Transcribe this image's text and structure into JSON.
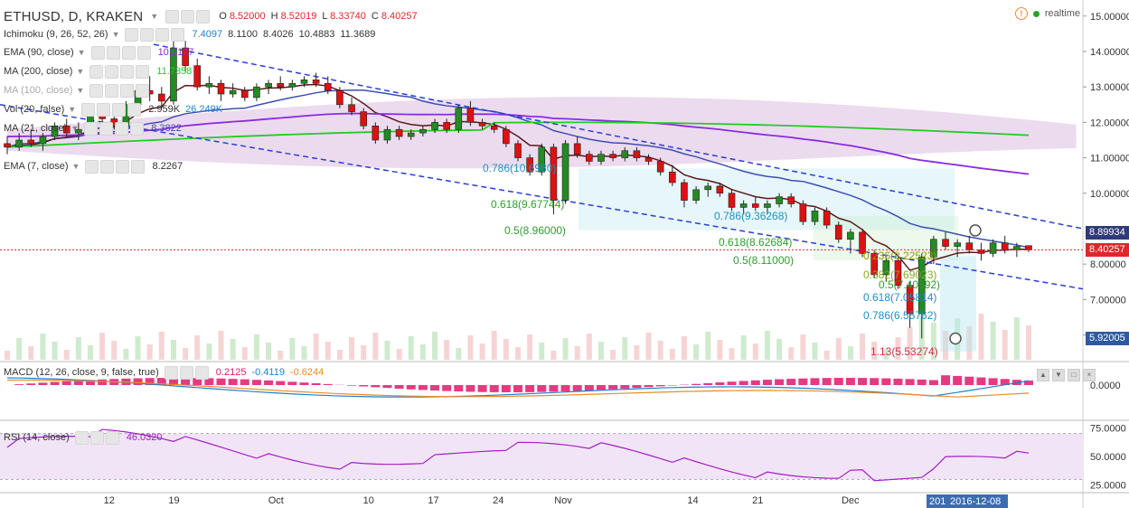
{
  "header": {
    "symbol": "ETHUSD, D, KRAKEN",
    "ohlc": [
      {
        "k": "O",
        "v": "8.52000"
      },
      {
        "k": "H",
        "v": "8.52019"
      },
      {
        "k": "L",
        "v": "8.33740"
      },
      {
        "k": "C",
        "v": "8.40257"
      }
    ]
  },
  "status": {
    "label": "realtime",
    "warn_icon": "warning-icon",
    "status_color": "#2ca02c"
  },
  "indicators": [
    {
      "label": "Ichimoku (9, 26, 52, 26)",
      "values": [
        {
          "text": "7.4097",
          "color": "#1e7fd0"
        },
        {
          "text": "8.1100",
          "color": "#333333"
        },
        {
          "text": "8.4026",
          "color": "#333333"
        },
        {
          "text": "10.4883",
          "color": "#333333"
        },
        {
          "text": "11.3689",
          "color": "#333333"
        }
      ]
    },
    {
      "label": "EMA (90, close)",
      "values": [
        {
          "text": "10.2177",
          "color": "#8a2be2"
        }
      ]
    },
    {
      "label": "MA (200, close)",
      "values": [
        {
          "text": "11.7358",
          "color": "#22cc22"
        }
      ]
    },
    {
      "label": "MA (100, close)",
      "values": [],
      "hidden": true
    },
    {
      "label": "Vol (20, false)",
      "values": [
        {
          "text": "2.959K",
          "color": "#333333"
        },
        {
          "text": "26.249K",
          "color": "#1e7fd0"
        }
      ]
    },
    {
      "label": "MA (21, close)",
      "values": [
        {
          "text": "8.3822",
          "color": "#3e4fb0"
        }
      ]
    },
    {
      "label": "EMA (7, close)",
      "values": [
        {
          "text": "8.2267",
          "color": "#333333"
        }
      ]
    }
  ],
  "fib_labels": [
    {
      "text": "0.786(10.6980)",
      "color": "#1e90c0"
    },
    {
      "text": "0.618(9.67744)",
      "color": "#2ca02c"
    },
    {
      "text": "0.5(8.96000)",
      "color": "#2e9b2e"
    },
    {
      "text": "0.786(9.36268)",
      "color": "#1e90c0"
    },
    {
      "text": "0.618(8.62684)",
      "color": "#2ca02c"
    },
    {
      "text": "0.5(8.11000)",
      "color": "#2e9b2e"
    },
    {
      "text": "0.236(8.22523)",
      "color": "#999900"
    },
    {
      "text": "0.382(7.69023)",
      "color": "#88aa22"
    },
    {
      "text": "0.5(7.40592)",
      "color": "#2e9b2e"
    },
    {
      "text": "0.618(7.05814)",
      "color": "#1e90c0"
    },
    {
      "text": "0.786(6.55762)",
      "color": "#1e90c0"
    },
    {
      "text": "1.13(5.53274)",
      "color": "#d0304a"
    }
  ],
  "price_axis": {
    "ticks": [
      "15.00000",
      "14.00000",
      "13.00000",
      "12.00000",
      "11.00000",
      "10.00000",
      "8.00000",
      "7.00000",
      "6.00000"
    ],
    "tags": [
      {
        "text": "8.89934",
        "value": 8.89934,
        "color": "#2f3a78"
      },
      {
        "text": "8.40257",
        "value": 8.40257,
        "color": "#e0262a"
      },
      {
        "text": "5.92005",
        "value": 5.92005,
        "color": "#2f5aa0"
      }
    ]
  },
  "macd_panel": {
    "label": "MACD (12, 26, close, 9, false, true)",
    "values": [
      {
        "text": "0.2125",
        "color": "#e0186b"
      },
      {
        "text": "-0.4119",
        "color": "#1e7fd0"
      },
      {
        "text": "-0.6244",
        "color": "#f08a24"
      }
    ],
    "axis_ticks": [
      "0.0000"
    ]
  },
  "rsi_panel": {
    "label": "RSI (14, close)",
    "values": [
      {
        "text": "46.0320",
        "color": "#a020c0"
      }
    ],
    "axis_ticks": [
      "75.0000",
      "50.0000",
      "25.0000"
    ]
  },
  "time_axis": {
    "labels": [
      "12",
      "19",
      "Oct",
      "10",
      "17",
      "24",
      "Nov",
      "14",
      "21",
      "Dec",
      "12"
    ],
    "cursor_labels": [
      "201",
      "2016-12-08"
    ]
  },
  "chart_data": {
    "type": "candlestick",
    "symbol": "ETHUSD",
    "interval": "D",
    "exchange": "KRAKEN",
    "ylim": [
      5.3,
      15.3
    ],
    "last_close": 8.40257,
    "candles": [
      [
        11.4,
        11.6,
        11.1,
        11.3
      ],
      [
        11.3,
        11.7,
        11.2,
        11.5
      ],
      [
        11.5,
        11.8,
        11.3,
        11.4
      ],
      [
        11.4,
        11.7,
        11.2,
        11.6
      ],
      [
        11.6,
        12.0,
        11.5,
        11.9
      ],
      [
        11.9,
        12.1,
        11.6,
        11.7
      ],
      [
        11.7,
        12.0,
        11.5,
        11.8
      ],
      [
        11.8,
        12.3,
        11.7,
        12.2
      ],
      [
        12.2,
        12.5,
        12.0,
        12.1
      ],
      [
        12.1,
        12.3,
        11.8,
        11.9
      ],
      [
        11.9,
        12.6,
        11.8,
        12.5
      ],
      [
        12.5,
        13.0,
        12.3,
        12.9
      ],
      [
        12.9,
        13.3,
        12.6,
        12.8
      ],
      [
        12.8,
        13.0,
        12.4,
        12.6
      ],
      [
        12.6,
        14.3,
        12.5,
        14.1
      ],
      [
        14.1,
        14.3,
        13.4,
        13.6
      ],
      [
        13.6,
        13.8,
        12.9,
        13.0
      ],
      [
        13.0,
        13.3,
        12.8,
        13.1
      ],
      [
        13.1,
        13.2,
        12.6,
        12.8
      ],
      [
        12.8,
        13.1,
        12.7,
        12.9
      ],
      [
        12.9,
        13.0,
        12.6,
        12.7
      ],
      [
        12.7,
        13.1,
        12.6,
        13.0
      ],
      [
        13.0,
        13.2,
        12.8,
        13.1
      ],
      [
        13.1,
        13.3,
        12.9,
        13.0
      ],
      [
        13.0,
        13.2,
        12.9,
        13.1
      ],
      [
        13.1,
        13.3,
        13.0,
        13.2
      ],
      [
        13.2,
        13.4,
        13.0,
        13.1
      ],
      [
        13.1,
        13.3,
        12.8,
        12.9
      ],
      [
        12.9,
        13.0,
        12.4,
        12.5
      ],
      [
        12.5,
        12.7,
        12.2,
        12.3
      ],
      [
        12.3,
        12.4,
        11.8,
        11.9
      ],
      [
        11.9,
        12.0,
        11.4,
        11.5
      ],
      [
        11.5,
        11.9,
        11.4,
        11.8
      ],
      [
        11.8,
        11.9,
        11.5,
        11.6
      ],
      [
        11.6,
        11.8,
        11.5,
        11.7
      ],
      [
        11.7,
        11.9,
        11.6,
        11.8
      ],
      [
        11.8,
        12.1,
        11.7,
        12.0
      ],
      [
        12.0,
        12.1,
        11.7,
        11.8
      ],
      [
        11.8,
        12.5,
        11.7,
        12.4
      ],
      [
        12.4,
        12.6,
        11.9,
        12.0
      ],
      [
        12.0,
        12.1,
        11.8,
        11.9
      ],
      [
        11.9,
        12.0,
        11.7,
        11.8
      ],
      [
        11.8,
        11.9,
        11.3,
        11.4
      ],
      [
        11.4,
        11.5,
        10.9,
        11.0
      ],
      [
        11.0,
        11.1,
        10.5,
        10.6
      ],
      [
        10.6,
        11.4,
        10.5,
        11.3
      ],
      [
        11.3,
        11.4,
        9.4,
        9.8
      ],
      [
        9.8,
        11.5,
        9.7,
        11.4
      ],
      [
        11.4,
        11.6,
        11.0,
        11.1
      ],
      [
        11.1,
        11.2,
        10.8,
        10.9
      ],
      [
        10.9,
        11.2,
        10.8,
        11.1
      ],
      [
        11.1,
        11.2,
        10.9,
        11.0
      ],
      [
        11.0,
        11.3,
        10.9,
        11.2
      ],
      [
        11.2,
        11.3,
        10.9,
        11.0
      ],
      [
        11.0,
        11.1,
        10.8,
        10.9
      ],
      [
        10.9,
        11.0,
        10.5,
        10.6
      ],
      [
        10.6,
        10.8,
        10.2,
        10.3
      ],
      [
        10.3,
        10.4,
        9.6,
        9.8
      ],
      [
        9.8,
        10.2,
        9.7,
        10.1
      ],
      [
        10.1,
        10.3,
        9.9,
        10.2
      ],
      [
        10.2,
        10.3,
        9.9,
        10.0
      ],
      [
        10.0,
        10.1,
        9.5,
        9.6
      ],
      [
        9.6,
        9.8,
        9.4,
        9.7
      ],
      [
        9.7,
        9.9,
        9.5,
        9.6
      ],
      [
        9.6,
        9.8,
        9.4,
        9.7
      ],
      [
        9.7,
        10.0,
        9.6,
        9.9
      ],
      [
        9.9,
        10.0,
        9.6,
        9.7
      ],
      [
        9.7,
        9.8,
        9.1,
        9.2
      ],
      [
        9.2,
        9.6,
        9.1,
        9.5
      ],
      [
        9.5,
        9.6,
        9.0,
        9.1
      ],
      [
        9.1,
        9.2,
        8.6,
        8.7
      ],
      [
        8.7,
        9.0,
        8.3,
        8.9
      ],
      [
        8.9,
        9.0,
        8.2,
        8.3
      ],
      [
        8.3,
        8.4,
        7.6,
        7.7
      ],
      [
        7.7,
        8.2,
        7.5,
        8.1
      ],
      [
        8.1,
        8.2,
        7.3,
        7.4
      ],
      [
        7.4,
        7.5,
        6.2,
        6.6
      ],
      [
        6.6,
        8.3,
        5.9,
        8.2
      ],
      [
        8.2,
        8.8,
        8.0,
        8.7
      ],
      [
        8.7,
        8.9,
        8.4,
        8.5
      ],
      [
        8.5,
        8.7,
        8.2,
        8.6
      ],
      [
        8.6,
        8.8,
        8.3,
        8.4
      ],
      [
        8.4,
        8.6,
        8.1,
        8.3
      ],
      [
        8.3,
        8.7,
        8.2,
        8.6
      ],
      [
        8.6,
        8.8,
        8.3,
        8.4
      ],
      [
        8.4,
        8.6,
        8.2,
        8.5
      ],
      [
        8.52,
        8.52019,
        8.3374,
        8.40257
      ]
    ],
    "fib_levels": [
      10.698,
      9.67744,
      8.96,
      9.36268,
      8.62684,
      8.11,
      8.22523,
      7.69023,
      7.40592,
      7.05814,
      6.55762,
      5.53274
    ],
    "macd": {
      "macd": -0.4119,
      "signal": -0.6244,
      "histogram": 0.2125
    },
    "rsi": {
      "value": 46.032,
      "levels": [
        70,
        30
      ]
    },
    "rsi_ylim": [
      20,
      80
    ]
  }
}
